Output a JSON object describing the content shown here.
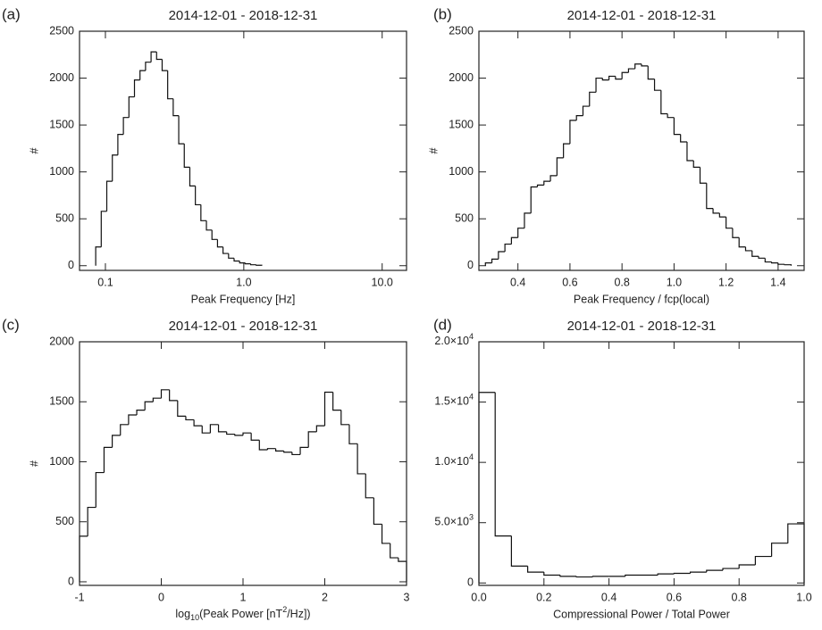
{
  "chart_data": [
    {
      "type": "histogram",
      "panel_label": "(a)",
      "title": "2014-12-01 - 2018-12-31",
      "xlabel": "Peak Frequency [Hz]",
      "ylabel": "#",
      "color": "#111111",
      "xscale": "log",
      "bins": [
        0.0851,
        0.0933,
        0.1023,
        0.1122,
        0.123,
        0.1349,
        0.1479,
        0.1622,
        0.1778,
        0.195,
        0.2138,
        0.2344,
        0.257,
        0.2818,
        0.309,
        0.3388,
        0.3715,
        0.4074,
        0.4467,
        0.4898,
        0.537,
        0.5888,
        0.6457,
        0.7079,
        0.7762,
        0.8511,
        0.9333,
        1.0233,
        1.122,
        1.2303,
        1.349
      ],
      "values": [
        200,
        580,
        900,
        1180,
        1400,
        1580,
        1800,
        1980,
        2080,
        2170,
        2280,
        2200,
        2080,
        1780,
        1600,
        1300,
        1050,
        850,
        650,
        480,
        380,
        280,
        200,
        130,
        80,
        50,
        30,
        20,
        10,
        5
      ],
      "xlim": [
        0.065,
        15
      ],
      "xticks": [
        0.1,
        {
          "value": 1,
          "label": "1.0"
        },
        {
          "value": 10,
          "label": "10.0"
        }
      ],
      "ylim": [
        -50,
        2500
      ],
      "yticks": [
        0,
        500,
        1000,
        1500,
        2000,
        2500
      ]
    },
    {
      "type": "histogram",
      "panel_label": "(b)",
      "title": "2014-12-01 - 2018-12-31",
      "xlabel": "Peak Frequency / fcp(local)",
      "ylabel": "#",
      "color": "#111111",
      "bins": [
        0.275,
        0.3,
        0.325,
        0.35,
        0.375,
        0.4,
        0.425,
        0.45,
        0.475,
        0.5,
        0.525,
        0.55,
        0.575,
        0.6,
        0.625,
        0.65,
        0.675,
        0.7,
        0.725,
        0.75,
        0.775,
        0.8,
        0.825,
        0.85,
        0.875,
        0.9,
        0.925,
        0.95,
        0.975,
        1.0,
        1.025,
        1.05,
        1.075,
        1.1,
        1.125,
        1.15,
        1.175,
        1.2,
        1.225,
        1.25,
        1.275,
        1.3,
        1.325,
        1.35,
        1.375,
        1.4,
        1.425,
        1.45
      ],
      "values": [
        30,
        70,
        150,
        230,
        300,
        400,
        560,
        840,
        860,
        900,
        960,
        1150,
        1300,
        1550,
        1600,
        1700,
        1850,
        2000,
        1980,
        2020,
        1990,
        2060,
        2100,
        2150,
        2130,
        1990,
        1870,
        1620,
        1580,
        1400,
        1320,
        1120,
        1050,
        880,
        610,
        560,
        520,
        400,
        300,
        200,
        160,
        100,
        80,
        40,
        30,
        15,
        10
      ],
      "xlim": [
        0.25,
        1.5
      ],
      "xticks": [
        0.4,
        0.6,
        0.8,
        {
          "value": 1,
          "label": "1.0"
        },
        1.2,
        1.4
      ],
      "ylim": [
        -50,
        2500
      ],
      "yticks": [
        0,
        500,
        1000,
        1500,
        2000,
        2500
      ]
    },
    {
      "type": "histogram",
      "panel_label": "(c)",
      "title": "2014-12-01 - 2018-12-31",
      "xlabel": [
        "log",
        "10",
        "(Peak Power [nT",
        "2",
        "/Hz])"
      ],
      "ylabel": "#",
      "color": "#111111",
      "bins": [
        -1.0,
        -0.9,
        -0.8,
        -0.7,
        -0.6,
        -0.5,
        -0.4,
        -0.3,
        -0.2,
        -0.1,
        0.0,
        0.1,
        0.2,
        0.3,
        0.4,
        0.5,
        0.6,
        0.7,
        0.8,
        0.9,
        1.0,
        1.1,
        1.2,
        1.3,
        1.4,
        1.5,
        1.6,
        1.7,
        1.8,
        1.9,
        2.0,
        2.1,
        2.2,
        2.3,
        2.4,
        2.5,
        2.6,
        2.7,
        2.8,
        2.9,
        3.0
      ],
      "values": [
        380,
        620,
        910,
        1120,
        1220,
        1310,
        1390,
        1430,
        1500,
        1530,
        1600,
        1510,
        1380,
        1350,
        1300,
        1240,
        1310,
        1250,
        1230,
        1220,
        1240,
        1180,
        1100,
        1110,
        1090,
        1080,
        1060,
        1120,
        1250,
        1300,
        1580,
        1430,
        1310,
        1150,
        900,
        700,
        480,
        320,
        200,
        170
      ],
      "xlim": [
        -1,
        3
      ],
      "xticks": [
        -1,
        0,
        1,
        2,
        3
      ],
      "ylim": [
        -30,
        2000
      ],
      "yticks": [
        0,
        500,
        1000,
        1500,
        2000
      ]
    },
    {
      "type": "histogram",
      "panel_label": "(d)",
      "title": "2014-12-01 - 2018-12-31",
      "xlabel": "Compressional Power / Total Power",
      "color": "#111111",
      "bins": [
        0.0,
        0.05,
        0.1,
        0.15,
        0.2,
        0.25,
        0.3,
        0.35,
        0.4,
        0.45,
        0.5,
        0.55,
        0.6,
        0.65,
        0.7,
        0.75,
        0.8,
        0.85,
        0.9,
        0.95,
        1.0
      ],
      "values": [
        15800,
        3900,
        1400,
        900,
        650,
        550,
        500,
        550,
        550,
        650,
        650,
        750,
        800,
        900,
        1050,
        1200,
        1500,
        2200,
        3300,
        4900
      ],
      "xlim": [
        0,
        1
      ],
      "xticks": [
        {
          "value": 0,
          "label": "0.0"
        },
        0.2,
        0.4,
        0.6,
        0.8,
        {
          "value": 1,
          "label": "1.0"
        }
      ],
      "ylim": [
        -200,
        20000
      ],
      "yticks": [
        0,
        {
          "value": 5000,
          "label": [
            "5.0×10",
            "3"
          ]
        },
        {
          "value": 10000,
          "label": [
            "1.0×10",
            "4"
          ]
        },
        {
          "value": 15000,
          "label": [
            "1.5×10",
            "4"
          ]
        },
        {
          "value": 20000,
          "label": [
            "2.0×10",
            "4"
          ]
        }
      ]
    }
  ]
}
